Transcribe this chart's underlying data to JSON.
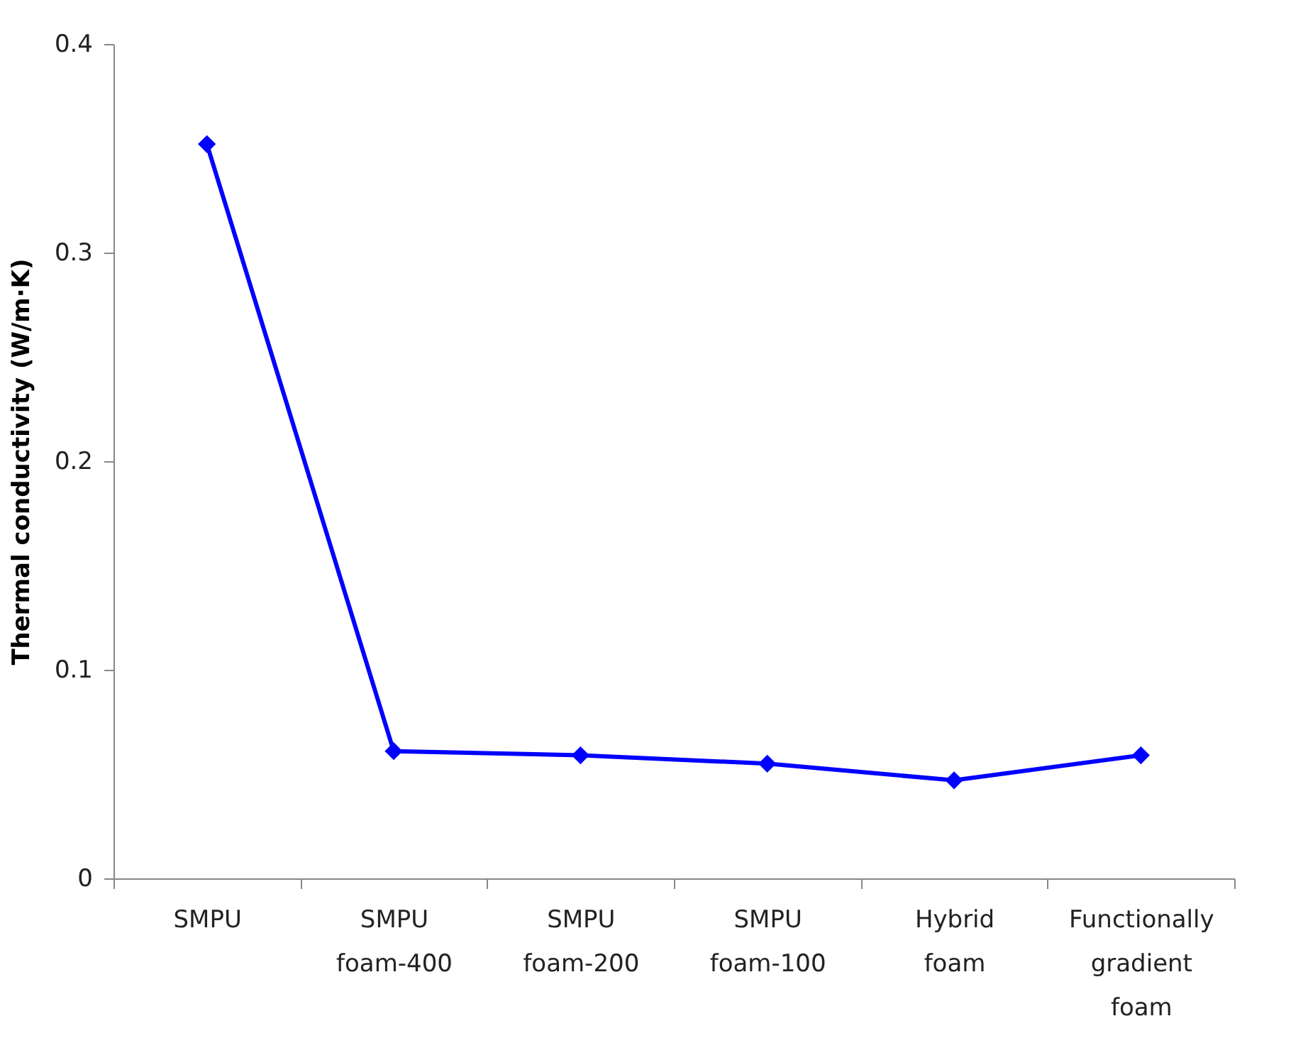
{
  "chart_data": {
    "type": "line",
    "ylabel": "Thermal conductivity (W/m·K)",
    "categories": [
      "SMPU",
      "SMPU foam-400",
      "SMPU foam-200",
      "SMPU foam-100",
      "Hybrid foam",
      "Functionally gradient foam"
    ],
    "series": [
      {
        "color": "#0000ff",
        "values": [
          0.352,
          0.061,
          0.059,
          0.055,
          0.047,
          0.059
        ]
      }
    ],
    "ylim": [
      0,
      0.4
    ],
    "yticks": [
      {
        "value": 0,
        "label": "0"
      },
      0.1,
      0.2,
      0.3,
      0.4
    ],
    "grid": false,
    "marker": "diamond",
    "line_style": "solid"
  }
}
